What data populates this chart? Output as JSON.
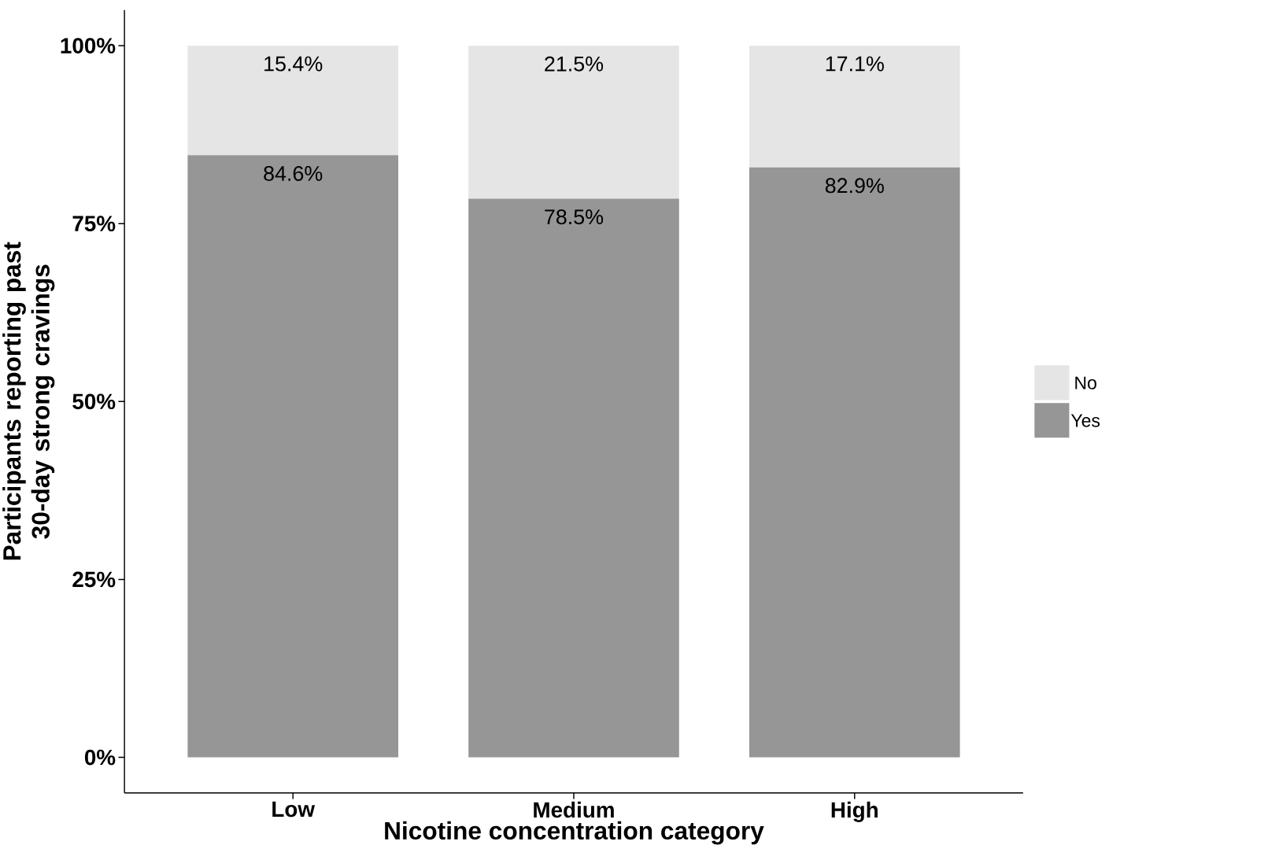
{
  "chart_data": {
    "type": "bar",
    "stacked": true,
    "xlabel": "Nicotine concentration category",
    "ylabel": "Participants reporting past 30-day strong cravings",
    "categories": [
      "Low",
      "Medium",
      "High"
    ],
    "series": [
      {
        "name": "Yes",
        "color": "#969696",
        "values": [
          84.6,
          78.5,
          82.9
        ],
        "value_labels": [
          "84.6%",
          "78.5%",
          "82.9%"
        ]
      },
      {
        "name": "No",
        "color": "#e5e5e5",
        "values": [
          15.4,
          21.5,
          17.1
        ],
        "value_labels": [
          "15.4%",
          "21.5%",
          "17.1%"
        ]
      }
    ],
    "ylim": [
      -5,
      105
    ],
    "yticks": [
      {
        "value": 0,
        "label": "0%"
      },
      {
        "value": 25,
        "label": "25%"
      },
      {
        "value": 50,
        "label": "50%"
      },
      {
        "value": 75,
        "label": "75%"
      },
      {
        "value": 100,
        "label": "100%"
      }
    ],
    "grid": false,
    "legend": "right"
  }
}
